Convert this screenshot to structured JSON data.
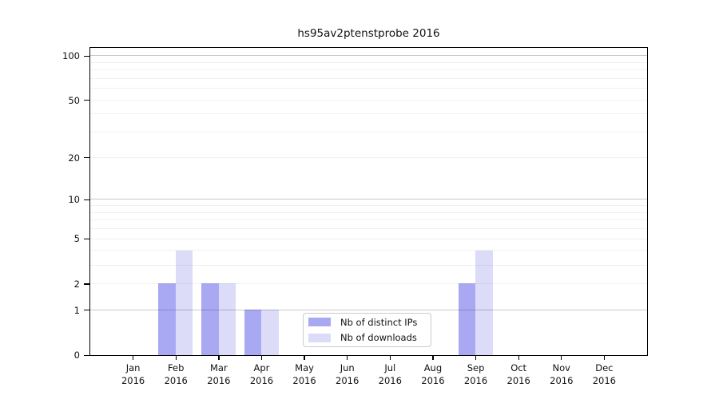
{
  "chart": {
    "title": "hs95av2ptenstprobe 2016"
  },
  "chart_data": {
    "type": "bar",
    "title": "hs95av2ptenstprobe 2016",
    "categories": [
      "Jan",
      "Feb",
      "Mar",
      "Apr",
      "May",
      "Jun",
      "Jul",
      "Aug",
      "Sep",
      "Oct",
      "Nov",
      "Dec"
    ],
    "x_sublabel": "2016",
    "series": [
      {
        "name": "Nb of distinct IPs",
        "color": "#a9a9f3",
        "values": [
          0,
          2,
          2,
          1,
          0,
          0,
          0,
          0,
          2,
          0,
          0,
          0
        ]
      },
      {
        "name": "Nb of downloads",
        "color": "#dcdcf8",
        "values": [
          0,
          4,
          2,
          1,
          0,
          0,
          0,
          0,
          4,
          0,
          0,
          0
        ]
      }
    ],
    "yscale": "log1p",
    "ylim": [
      0,
      100
    ],
    "yticks": [
      0,
      1,
      2,
      5,
      10,
      20,
      50,
      100
    ],
    "grid_major": [
      1,
      10,
      100
    ],
    "grid_minor": [
      2,
      3,
      4,
      5,
      6,
      7,
      8,
      9,
      20,
      30,
      40,
      50,
      60,
      70,
      80,
      90
    ],
    "legend_position": "bottom-center",
    "colors": {
      "axis": "#000000",
      "grid_major": "#c8c8c8",
      "grid_minor": "#f0f0f0"
    }
  }
}
